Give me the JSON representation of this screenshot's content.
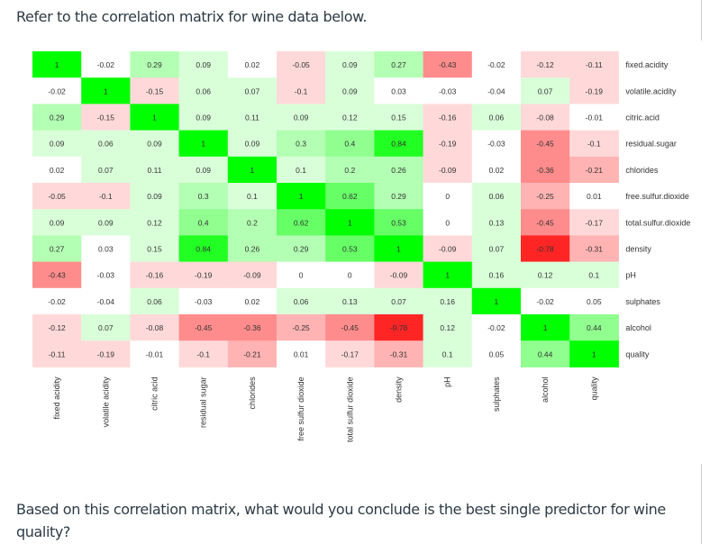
{
  "intro_text": "Refer to the correlation matrix for wine data below.",
  "question_text": "Based on this correlation matrix, what would you conclude is the best single predictor for wine quality?",
  "chart_data": {
    "type": "heatmap",
    "variables": [
      "fixed.acidity",
      "volatile.acidity",
      "citric.acid",
      "residual.sugar",
      "chlorides",
      "free.sulfur.dioxide",
      "total.sulfur.dioxide",
      "density",
      "pH",
      "sulphates",
      "alcohol",
      "quality"
    ],
    "row_labels": [
      "fixed.acidity",
      "volatile.acidity",
      "citric.acid",
      "residual.sugar",
      "chlorides",
      "free.sulfur.dioxide",
      "total.sulfur.dioxide",
      "density",
      "pH",
      "sulphates",
      "alcohol",
      "quality"
    ],
    "col_labels": [
      "fixed acidity",
      "volatile acidity",
      "citric acid",
      "residual sugar",
      "chlorides",
      "free sulfur dioxide",
      "total sulfur dioxide",
      "density",
      "pH",
      "sulphates",
      "alcohol",
      "quality"
    ],
    "matrix": [
      [
        1,
        -0.02,
        0.29,
        0.09,
        0.02,
        -0.05,
        0.09,
        0.27,
        -0.43,
        -0.02,
        -0.12,
        -0.11
      ],
      [
        -0.02,
        1,
        -0.15,
        0.06,
        0.07,
        -0.1,
        0.09,
        0.03,
        -0.03,
        -0.04,
        0.07,
        -0.19
      ],
      [
        0.29,
        -0.15,
        1,
        0.09,
        0.11,
        0.09,
        0.12,
        0.15,
        -0.16,
        0.06,
        -0.08,
        -0.01
      ],
      [
        0.09,
        0.06,
        0.09,
        1,
        0.09,
        0.3,
        0.4,
        0.84,
        -0.19,
        -0.03,
        -0.45,
        -0.1
      ],
      [
        0.02,
        0.07,
        0.11,
        0.09,
        1,
        0.1,
        0.2,
        0.26,
        -0.09,
        0.02,
        -0.36,
        -0.21
      ],
      [
        -0.05,
        -0.1,
        0.09,
        0.3,
        0.1,
        1,
        0.62,
        0.29,
        0,
        0.06,
        -0.25,
        0.01
      ],
      [
        0.09,
        0.09,
        0.12,
        0.4,
        0.2,
        0.62,
        1,
        0.53,
        0,
        0.13,
        -0.45,
        -0.17
      ],
      [
        0.27,
        0.03,
        0.15,
        0.84,
        0.26,
        0.29,
        0.53,
        1,
        -0.09,
        0.07,
        -0.78,
        -0.31
      ],
      [
        -0.43,
        -0.03,
        -0.16,
        -0.19,
        -0.09,
        0,
        0,
        -0.09,
        1,
        0.16,
        0.12,
        0.1
      ],
      [
        -0.02,
        -0.04,
        0.06,
        -0.03,
        0.02,
        0.06,
        0.13,
        0.07,
        0.16,
        1,
        -0.02,
        0.05
      ],
      [
        -0.12,
        0.07,
        -0.08,
        -0.45,
        -0.36,
        -0.25,
        -0.45,
        -0.78,
        0.12,
        -0.02,
        1,
        0.44
      ],
      [
        -0.11,
        -0.19,
        -0.01,
        -0.1,
        -0.21,
        0.01,
        -0.17,
        -0.31,
        0.1,
        0.05,
        0.44,
        1
      ]
    ],
    "color_scale": {
      "positive": "#00ff00",
      "negative": "#ff0000",
      "zero": "#ffffff"
    },
    "range": [
      -1,
      1
    ],
    "legend": "none"
  }
}
